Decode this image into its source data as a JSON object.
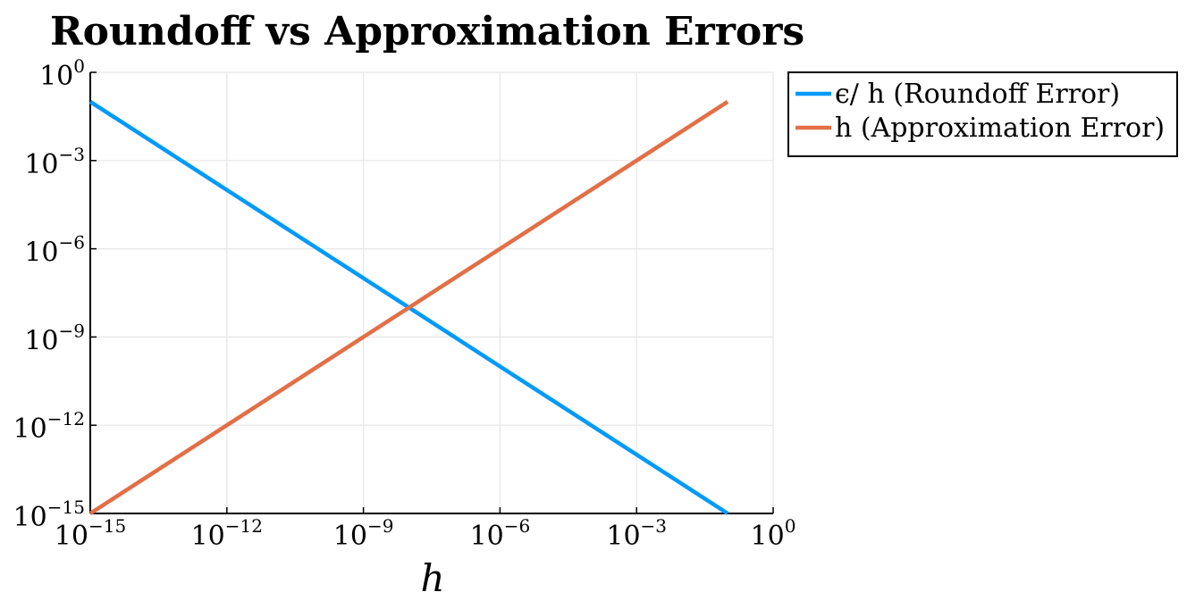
{
  "chart_data": {
    "type": "line",
    "title": "Roundoff vs Approximation Errors",
    "xlabel": "h",
    "ylabel": "",
    "xscale": "log",
    "yscale": "log",
    "xlim": [
      1e-15,
      1
    ],
    "ylim": [
      1e-15,
      1
    ],
    "x_ticks": [
      {
        "base": "10",
        "exp": "−15"
      },
      {
        "base": "10",
        "exp": "−12"
      },
      {
        "base": "10",
        "exp": "−9"
      },
      {
        "base": "10",
        "exp": "−6"
      },
      {
        "base": "10",
        "exp": "−3"
      },
      {
        "base": "10",
        "exp": "0"
      }
    ],
    "y_ticks": [
      {
        "base": "10",
        "exp": "0"
      },
      {
        "base": "10",
        "exp": "−3"
      },
      {
        "base": "10",
        "exp": "−6"
      },
      {
        "base": "10",
        "exp": "−9"
      },
      {
        "base": "10",
        "exp": "−12"
      },
      {
        "base": "10",
        "exp": "−15"
      }
    ],
    "grid": true,
    "legend_position": "outside-top-right",
    "series": [
      {
        "name": "ϵ/ h (Roundoff Error)",
        "color": "#009AFA",
        "x": [
          1e-15,
          1e-12,
          1e-09,
          1e-06,
          0.001,
          0.1
        ],
        "y": [
          0.1,
          0.0001,
          1e-07,
          1e-10,
          1e-13,
          1e-15
        ]
      },
      {
        "name": "h (Approximation Error)",
        "color": "#E26F46",
        "x": [
          1e-15,
          1e-12,
          1e-09,
          1e-06,
          0.001,
          0.1
        ],
        "y": [
          1e-15,
          1e-12,
          1e-09,
          1e-06,
          0.001,
          0.1
        ]
      }
    ]
  }
}
